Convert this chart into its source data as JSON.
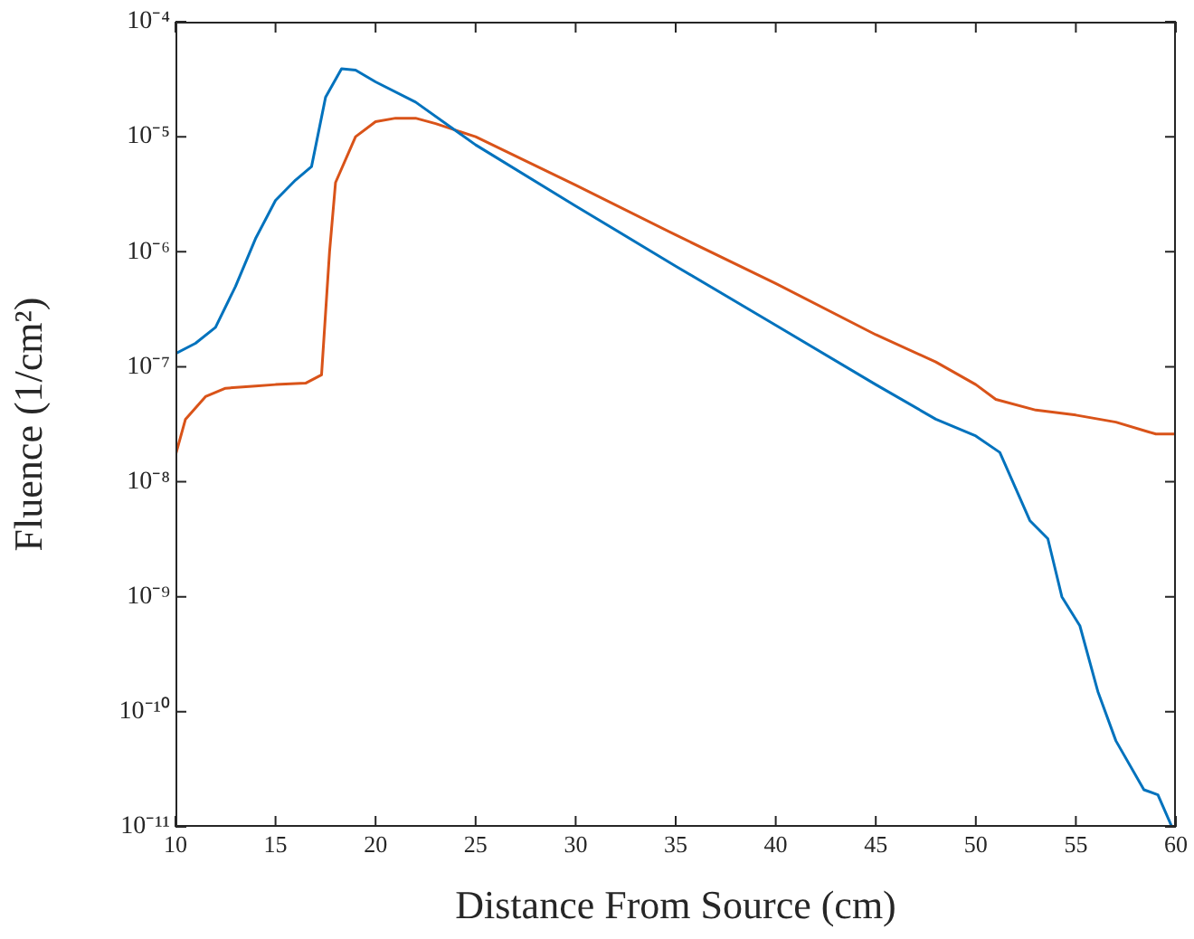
{
  "chart_data": {
    "type": "line",
    "xlabel": "Distance From Source (cm)",
    "ylabel": "Fluence (1/cm²)",
    "log": "y",
    "grid": false,
    "legend": false,
    "marker": "none",
    "line_style": "solid",
    "xlim": [
      10,
      60
    ],
    "xticks": [
      10,
      15,
      20,
      25,
      30,
      35,
      40,
      45,
      50,
      55,
      60
    ],
    "ylim": [
      1e-11,
      0.0001
    ],
    "yticks": [
      {
        "value": 1e-11,
        "label": "10⁻¹¹"
      },
      {
        "value": 1e-10,
        "label": "10⁻¹⁰"
      },
      {
        "value": 1e-09,
        "label": "10⁻⁹"
      },
      {
        "value": 1e-08,
        "label": "10⁻⁸"
      },
      {
        "value": 1e-07,
        "label": "10⁻⁷"
      },
      {
        "value": 1e-06,
        "label": "10⁻⁶"
      },
      {
        "value": 1e-05,
        "label": "10⁻⁵"
      },
      {
        "value": 0.0001,
        "label": "10⁻⁴"
      }
    ],
    "series": [
      {
        "color": "#0072bd",
        "x": [
          10,
          11,
          12,
          13,
          14,
          15,
          16,
          16.8,
          17.5,
          18.3,
          19,
          20,
          22,
          25,
          30,
          35,
          40,
          45,
          48,
          50,
          51.2,
          52.7,
          53.6,
          54.3,
          55.2,
          56.1,
          57,
          58.4,
          59.1,
          59.8
        ],
        "values": [
          1.3e-07,
          1.6e-07,
          2.2e-07,
          5e-07,
          1.3e-06,
          2.8e-06,
          4.2e-06,
          5.5e-06,
          2.2e-05,
          3.9e-05,
          3.8e-05,
          3e-05,
          2e-05,
          8.5e-06,
          2.5e-06,
          7.5e-07,
          2.3e-07,
          7e-08,
          3.5e-08,
          2.5e-08,
          1.8e-08,
          4.6e-09,
          3.2e-09,
          1e-09,
          5.6e-10,
          1.5e-10,
          5.6e-11,
          2.1e-11,
          1.9e-11,
          1e-11
        ]
      },
      {
        "color": "#d95319",
        "x": [
          10,
          10.5,
          11.5,
          12.5,
          14,
          15,
          16.5,
          17.3,
          17.7,
          18,
          19,
          20,
          21,
          22,
          23,
          25,
          30,
          35,
          40,
          45,
          48,
          50,
          51,
          53,
          55,
          57,
          59,
          60
        ],
        "values": [
          1.7e-08,
          3.5e-08,
          5.5e-08,
          6.5e-08,
          6.8e-08,
          7e-08,
          7.2e-08,
          8.5e-08,
          1e-06,
          4e-06,
          1e-05,
          1.35e-05,
          1.45e-05,
          1.45e-05,
          1.3e-05,
          1e-05,
          3.8e-06,
          1.4e-06,
          5.3e-07,
          1.9e-07,
          1.1e-07,
          7e-08,
          5.2e-08,
          4.2e-08,
          3.8e-08,
          3.3e-08,
          2.6e-08,
          2.6e-08
        ]
      }
    ]
  }
}
